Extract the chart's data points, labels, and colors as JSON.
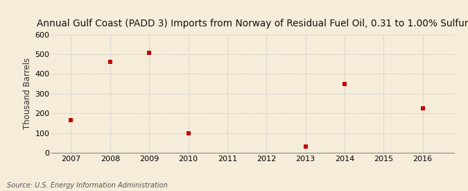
{
  "title": "Annual Gulf Coast (PADD 3) Imports from Norway of Residual Fuel Oil, 0.31 to 1.00% Sulfur",
  "ylabel": "Thousand Barrels",
  "source": "Source: U.S. Energy Information Administration",
  "x": [
    2007,
    2008,
    2009,
    2010,
    2013,
    2014,
    2016
  ],
  "y": [
    165,
    462,
    507,
    98,
    33,
    350,
    224
  ],
  "marker_color": "#c00000",
  "marker": "s",
  "marker_size": 4.5,
  "xlim": [
    2006.5,
    2016.8
  ],
  "ylim": [
    0,
    600
  ],
  "yticks": [
    0,
    100,
    200,
    300,
    400,
    500,
    600
  ],
  "xticks": [
    2007,
    2008,
    2009,
    2010,
    2011,
    2012,
    2013,
    2014,
    2015,
    2016
  ],
  "background_color": "#f5edda",
  "grid_color": "#bbbbbb",
  "title_fontsize": 9.8,
  "axis_label_fontsize": 8.5,
  "tick_fontsize": 8,
  "source_fontsize": 7
}
